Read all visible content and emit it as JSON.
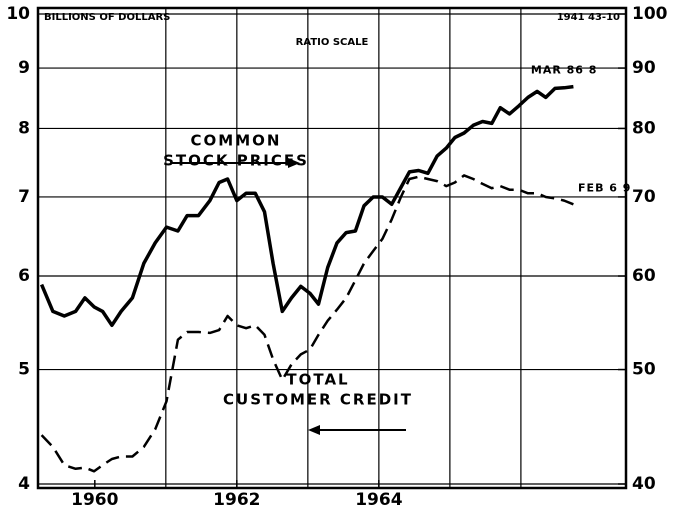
{
  "chart_data": {
    "type": "line",
    "y_label": "BILLIONS OF DOLLARS",
    "subtitle": "RATIO SCALE",
    "y2_label": "1941 43-10",
    "log_scale": true,
    "xlim": [
      1959.2,
      1967.48
    ],
    "xticks": [
      1960,
      1962,
      1964
    ],
    "xgrid": [
      1961,
      1962,
      1963,
      1964,
      1965,
      1966
    ],
    "ylim": [
      4,
      10
    ],
    "yticks": [
      4,
      5,
      6,
      7,
      8,
      9,
      10
    ],
    "y2lim": [
      40,
      100
    ],
    "y2ticks": [
      40,
      50,
      60,
      70,
      80,
      90,
      100
    ],
    "grid": true,
    "x": [
      1959.25,
      1959.41,
      1959.57,
      1959.73,
      1959.86,
      1959.99,
      1960.11,
      1960.24,
      1960.37,
      1960.53,
      1960.69,
      1960.85,
      1961.01,
      1961.17,
      1961.3,
      1961.46,
      1961.62,
      1961.75,
      1961.87,
      1962.0,
      1962.13,
      1962.26,
      1962.39,
      1962.51,
      1962.64,
      1962.77,
      1962.9,
      1963.03,
      1963.15,
      1963.28,
      1963.41,
      1963.54,
      1963.67,
      1963.79,
      1963.92,
      1964.05,
      1964.18,
      1964.31,
      1964.43,
      1964.56,
      1964.69,
      1964.82,
      1964.95,
      1965.07,
      1965.2,
      1965.33,
      1965.46,
      1965.59,
      1965.71,
      1965.84,
      1965.97,
      1966.1,
      1966.23,
      1966.35,
      1966.48,
      1966.61,
      1966.74
    ],
    "series": [
      {
        "label_lines": [
          "COMMON",
          "STOCK PRICES"
        ],
        "color": "#000000",
        "axis": "y2",
        "dashed": false,
        "end_label": "MAR 86 8",
        "values": [
          59,
          56,
          55.5,
          56,
          57.5,
          56.5,
          56,
          54.5,
          56,
          57.5,
          61.5,
          64,
          66,
          65.5,
          67.5,
          67.5,
          69.5,
          72,
          72.5,
          69.5,
          70.5,
          70.5,
          68,
          61.5,
          56,
          57.5,
          58.8,
          58,
          56.8,
          61,
          64,
          65.3,
          65.5,
          68.8,
          70,
          70,
          69,
          71.3,
          73.5,
          73.7,
          73.3,
          75.8,
          77,
          78.6,
          79.3,
          80.5,
          81.1,
          80.8,
          83.3,
          82.3,
          83.6,
          85,
          86,
          85,
          86.5,
          86.6,
          86.8
        ]
      },
      {
        "label_lines": [
          "TOTAL",
          "CUSTOMER CREDIT"
        ],
        "color": "#000000",
        "axis": "y",
        "dashed": true,
        "end_label": "FEB 6 9",
        "values": [
          4.4,
          4.3,
          4.15,
          4.12,
          4.13,
          4.1,
          4.15,
          4.2,
          4.22,
          4.22,
          4.3,
          4.45,
          4.7,
          5.3,
          5.38,
          5.38,
          5.37,
          5.4,
          5.55,
          5.45,
          5.42,
          5.45,
          5.35,
          5.1,
          4.9,
          5.05,
          5.15,
          5.2,
          5.35,
          5.5,
          5.62,
          5.75,
          5.95,
          6.15,
          6.3,
          6.45,
          6.7,
          7.0,
          7.25,
          7.28,
          7.25,
          7.22,
          7.15,
          7.2,
          7.3,
          7.25,
          7.18,
          7.12,
          7.15,
          7.1,
          7.1,
          7.05,
          7.05,
          7.0,
          6.98,
          6.95,
          6.9
        ]
      }
    ]
  }
}
